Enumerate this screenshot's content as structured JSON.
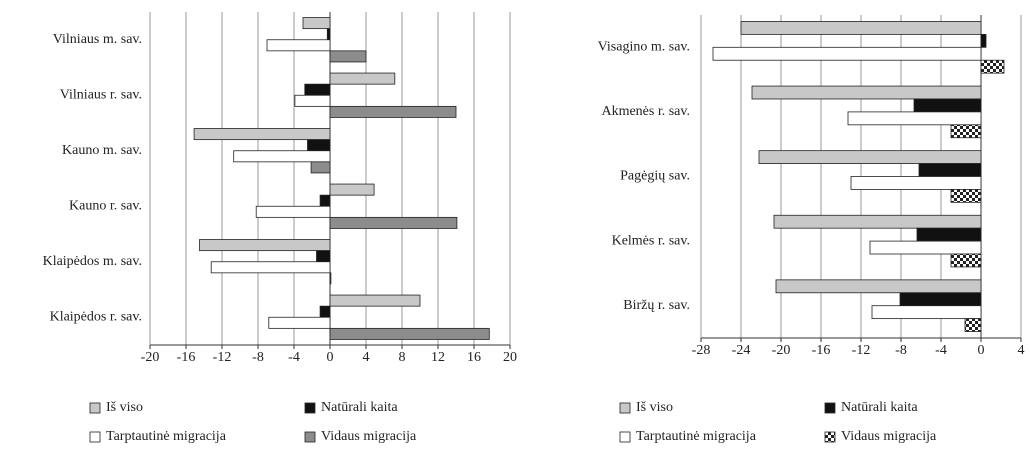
{
  "chart_data": [
    {
      "type": "hbar",
      "categories": [
        "Vilniaus m. sav.",
        "Vilniaus r. sav.",
        "Kauno m. sav.",
        "Kauno r. sav.",
        "Klaipėdos m. sav.",
        "Klaipėdos r. sav."
      ],
      "series": [
        {
          "name": "Iš viso",
          "color": "#c8c8c8",
          "values": [
            -3,
            7.2,
            -15.1,
            4.9,
            -14.5,
            10
          ]
        },
        {
          "name": "Natūrali kaita",
          "color": "#111111",
          "values": [
            -0.3,
            -2.8,
            -2.5,
            -1.1,
            -1.5,
            -1.1
          ]
        },
        {
          "name": "Tarptautinė migracija",
          "color": "#ffffff",
          "values": [
            -7,
            -3.9,
            -10.7,
            -8.2,
            -13.2,
            -6.8
          ]
        },
        {
          "name": "Vidaus migracija",
          "color": "#8c8c8c",
          "values": [
            4,
            14,
            -2.1,
            14.1,
            0.1,
            17.7
          ]
        }
      ],
      "xlim": [
        -20,
        20
      ],
      "xticks": [
        -20,
        -16,
        -12,
        -8,
        -4,
        0,
        4,
        8,
        12,
        16,
        20
      ],
      "grid": true
    },
    {
      "type": "hbar",
      "categories": [
        "Visagino m. sav.",
        "Akmenės r. sav.",
        "Pagėgių sav.",
        "Kelmės r. sav.",
        "Biržų r. sav."
      ],
      "series": [
        {
          "name": "Iš viso",
          "color": "#c8c8c8",
          "values": [
            -24,
            -22.9,
            -22.2,
            -20.7,
            -20.5
          ]
        },
        {
          "name": "Natūrali kaita",
          "color": "#111111",
          "values": [
            0.5,
            -6.7,
            -6.2,
            -6.4,
            -8.1
          ]
        },
        {
          "name": "Tarptautinė migracija",
          "color": "#ffffff",
          "values": [
            -26.8,
            -13.3,
            -13,
            -11.1,
            -10.9
          ]
        },
        {
          "name": "Vidaus migracija",
          "color": "#ffffff",
          "pattern": "checker",
          "values": [
            2.3,
            -3,
            -3,
            -3,
            -1.6
          ]
        }
      ],
      "xlim": [
        -28,
        4
      ],
      "xticks": [
        -28,
        -24,
        -20,
        -16,
        -12,
        -8,
        -4,
        0,
        4
      ],
      "grid": true
    }
  ]
}
